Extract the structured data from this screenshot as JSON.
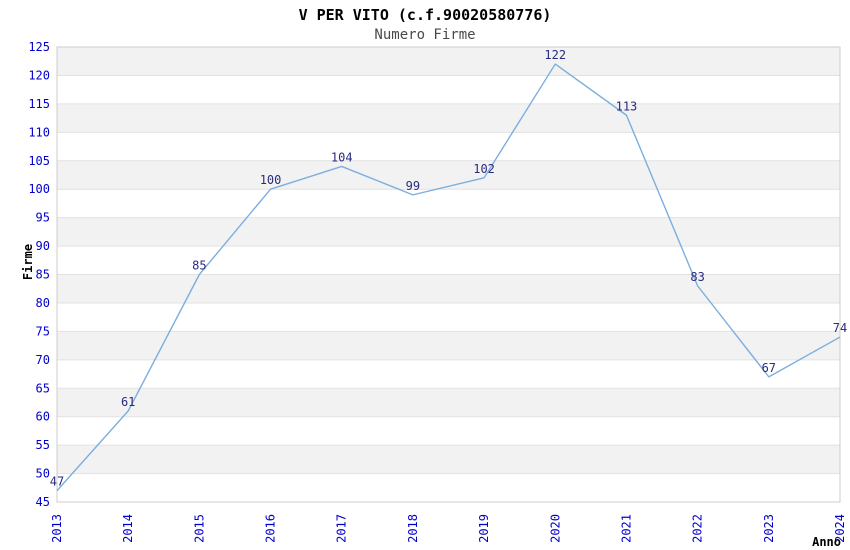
{
  "chart_data": {
    "type": "line",
    "title": "V PER VITO (c.f.90020580776)",
    "subtitle": "Numero Firme",
    "xlabel": "Anno",
    "ylabel": "Firme",
    "categories": [
      "2013",
      "2014",
      "2015",
      "2016",
      "2017",
      "2018",
      "2019",
      "2020",
      "2021",
      "2022",
      "2023",
      "2024"
    ],
    "values": [
      47,
      61,
      85,
      100,
      104,
      99,
      102,
      122,
      113,
      83,
      67,
      74
    ],
    "ylim": [
      45,
      125
    ],
    "ytick_step": 5,
    "grid": "horizontal-bands",
    "legend": false,
    "x_tick_rotation": -90,
    "colors": {
      "line": "#7caede",
      "tick_label": "#0000cc",
      "data_label": "#2b2b80",
      "band_fill": "#f2f2f2",
      "grid_line": "#e2e2e2",
      "plot_border": "#cccccc",
      "title": "#000000",
      "subtitle": "#4a4a4a",
      "axis_title": "#000000",
      "background": "#ffffff"
    }
  }
}
